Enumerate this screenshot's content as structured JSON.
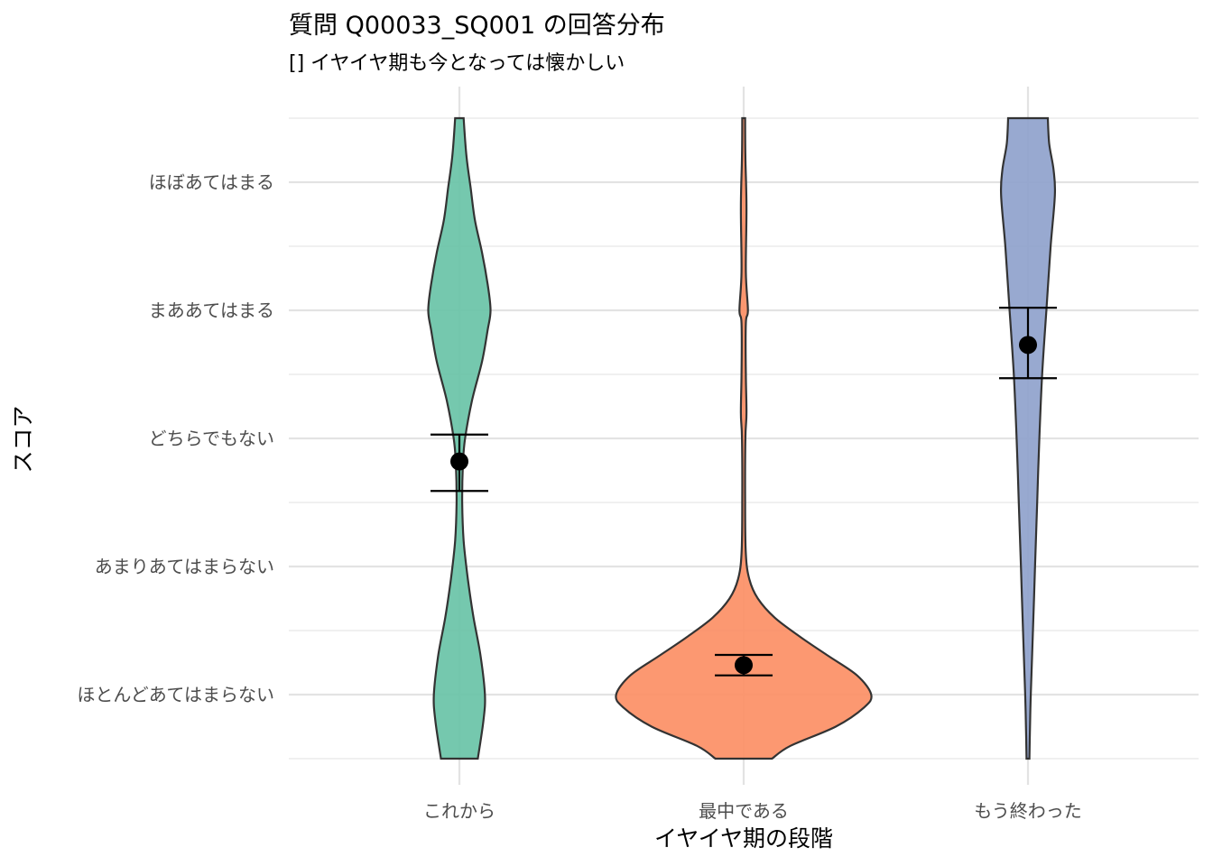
{
  "chart_data": {
    "type": "violin",
    "title": "質問 Q00033_SQ001 の回答分布",
    "subtitle": "[] イヤイヤ期も今となっては懐かしい",
    "xlabel": "イヤイヤ期の段階",
    "ylabel": "スコア",
    "categories": [
      "これから",
      "最中である",
      "もう終わった"
    ],
    "y_levels": [
      "ほとんどあてはまらない",
      "あまりあてはまらない",
      "どちらでもない",
      "まああてはまる",
      "ほぼあてはまる"
    ],
    "ylim": [
      0.5,
      5.5
    ],
    "grid": true,
    "legend": "none",
    "series": [
      {
        "category": "これから",
        "color": "#66C2A5",
        "mean": 2.82,
        "error_bar": [
          2.59,
          3.03
        ],
        "range": [
          0.5,
          5.5
        ],
        "density_profile": [
          [
            0.5,
            0.13
          ],
          [
            0.8,
            0.17
          ],
          [
            1.0,
            0.18
          ],
          [
            1.3,
            0.15
          ],
          [
            1.6,
            0.1
          ],
          [
            1.9,
            0.06
          ],
          [
            2.2,
            0.03
          ],
          [
            2.5,
            0.02
          ],
          [
            2.8,
            0.025
          ],
          [
            3.0,
            0.04
          ],
          [
            3.3,
            0.09
          ],
          [
            3.6,
            0.16
          ],
          [
            3.85,
            0.2
          ],
          [
            4.0,
            0.22
          ],
          [
            4.2,
            0.2
          ],
          [
            4.45,
            0.16
          ],
          [
            4.7,
            0.11
          ],
          [
            4.95,
            0.08
          ],
          [
            5.2,
            0.05
          ],
          [
            5.5,
            0.03
          ]
        ]
      },
      {
        "category": "最中である",
        "color": "#FC8D62",
        "mean": 1.23,
        "error_bar": [
          1.15,
          1.31
        ],
        "range": [
          0.5,
          5.5
        ],
        "density_profile": [
          [
            0.5,
            0.2
          ],
          [
            0.6,
            0.33
          ],
          [
            0.75,
            0.65
          ],
          [
            0.9,
            0.85
          ],
          [
            1.0,
            0.9
          ],
          [
            1.15,
            0.8
          ],
          [
            1.3,
            0.6
          ],
          [
            1.45,
            0.4
          ],
          [
            1.6,
            0.22
          ],
          [
            1.75,
            0.1
          ],
          [
            1.9,
            0.04
          ],
          [
            2.1,
            0.015
          ],
          [
            2.5,
            0.01
          ],
          [
            3.0,
            0.012
          ],
          [
            3.2,
            0.02
          ],
          [
            3.5,
            0.015
          ],
          [
            3.9,
            0.015
          ],
          [
            4.0,
            0.03
          ],
          [
            4.3,
            0.015
          ],
          [
            4.8,
            0.02
          ],
          [
            5.2,
            0.012
          ],
          [
            5.5,
            0.01
          ]
        ]
      },
      {
        "category": "もう終わった",
        "color": "#8DA0CB",
        "mean": 3.73,
        "error_bar": [
          3.47,
          4.02
        ],
        "range": [
          0.5,
          5.5
        ],
        "density_profile": [
          [
            0.5,
            0.01
          ],
          [
            0.8,
            0.015
          ],
          [
            1.0,
            0.02
          ],
          [
            1.5,
            0.035
          ],
          [
            2.0,
            0.05
          ],
          [
            2.5,
            0.065
          ],
          [
            3.0,
            0.08
          ],
          [
            3.5,
            0.1
          ],
          [
            4.0,
            0.13
          ],
          [
            4.5,
            0.16
          ],
          [
            4.9,
            0.19
          ],
          [
            5.1,
            0.18
          ],
          [
            5.3,
            0.15
          ],
          [
            5.5,
            0.14
          ]
        ]
      }
    ]
  }
}
